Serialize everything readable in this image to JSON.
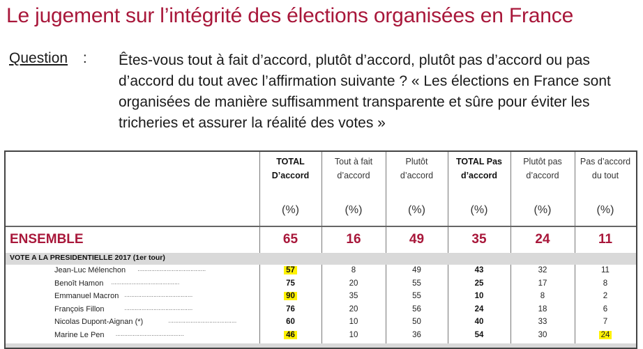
{
  "title": "Le jugement sur l’intégrité des élections organisées en France",
  "question": {
    "label": "Question",
    "separator": ":",
    "text": "Êtes-vous tout à fait d’accord, plutôt d’accord, plutôt pas d’accord ou pas d’accord du tout avec l’affirmation suivante ? « Les élections en France sont organisées de manière suffisamment transparente et sûre pour éviter les tricheries et assurer la réalité des votes »"
  },
  "table": {
    "columns": [
      {
        "line1": "TOTAL",
        "line2": "D’accord",
        "unit": "(%)",
        "bold": true
      },
      {
        "line1": "Tout à fait",
        "line2": "d’accord",
        "unit": "(%)",
        "bold": false
      },
      {
        "line1": "Plutôt",
        "line2": "d’accord",
        "unit": "(%)",
        "bold": false
      },
      {
        "line1": "TOTAL Pas",
        "line2": "d’accord",
        "unit": "(%)",
        "bold": true
      },
      {
        "line1": "Plutôt pas",
        "line2": "d’accord",
        "unit": "(%)",
        "bold": false
      },
      {
        "line1": "Pas d’accord",
        "line2": "du tout",
        "unit": "(%)",
        "bold": false
      }
    ],
    "ensemble": {
      "label": "ENSEMBLE",
      "values": [
        "65",
        "16",
        "49",
        "35",
        "24",
        "11"
      ]
    },
    "section_label": "VOTE A LA PRESIDENTIELLE 2017 (1er tour)",
    "rows": [
      {
        "label": "Jean-Luc Mélenchon",
        "values": [
          "57",
          "8",
          "49",
          "43",
          "32",
          "11"
        ],
        "highlight": [
          0
        ]
      },
      {
        "label": "Benoît Hamon",
        "values": [
          "75",
          "20",
          "55",
          "25",
          "17",
          "8"
        ],
        "highlight": []
      },
      {
        "label": "Emmanuel Macron",
        "values": [
          "90",
          "35",
          "55",
          "10",
          "8",
          "2"
        ],
        "highlight": [
          0
        ]
      },
      {
        "label": "François Fillon",
        "values": [
          "76",
          "20",
          "56",
          "24",
          "18",
          "6"
        ],
        "highlight": []
      },
      {
        "label": "Nicolas Dupont-Aignan (*)",
        "values": [
          "60",
          "10",
          "50",
          "40",
          "33",
          "7"
        ],
        "highlight": []
      },
      {
        "label": "Marine Le Pen",
        "values": [
          "46",
          "10",
          "36",
          "54",
          "30",
          "24"
        ],
        "highlight": [
          0,
          5
        ]
      }
    ],
    "highlight_color": "#fff200",
    "accent_color": "#a8173a"
  }
}
